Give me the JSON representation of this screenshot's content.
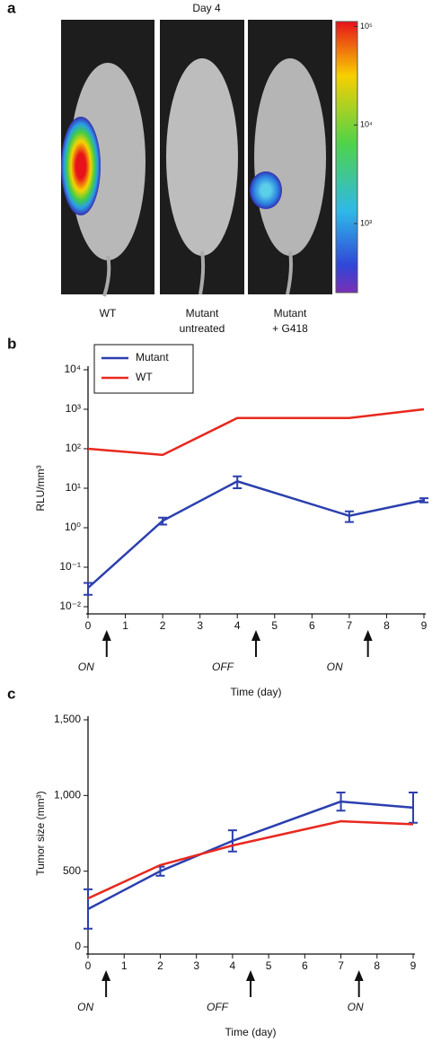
{
  "image_panel": {
    "label": "a",
    "title": "Day 4",
    "captions": [
      [
        "WT"
      ],
      [
        "Mutant",
        "untreated"
      ],
      [
        "Mutant",
        "+ G418"
      ]
    ],
    "colorbar_ticks": [
      {
        "value": 100000,
        "label": "10⁵"
      },
      {
        "value": 10000,
        "label": "10⁴"
      },
      {
        "value": 1000,
        "label": "10³"
      }
    ]
  },
  "chart_data": [
    {
      "type": "line",
      "label": "b",
      "xlabel": "Time (day)",
      "ylabel": "RLU/mm³",
      "yscale": "log",
      "x": [
        0,
        2,
        4,
        7,
        9
      ],
      "xlim": [
        0,
        9
      ],
      "xticks": [
        0,
        1,
        2,
        3,
        4,
        5,
        6,
        7,
        8,
        9
      ],
      "ylim": [
        0.01,
        10000
      ],
      "yticks": [
        {
          "value": 0.01,
          "label": "10⁻²"
        },
        {
          "value": 0.1,
          "label": "10⁻¹"
        },
        {
          "value": 1,
          "label": "10⁰"
        },
        {
          "value": 10,
          "label": "10¹"
        },
        {
          "value": 100,
          "label": "10²"
        },
        {
          "value": 1000,
          "label": "10³"
        },
        {
          "value": 10000,
          "label": "10⁴"
        }
      ],
      "series": [
        {
          "name": "Mutant",
          "color": "#2b3fae",
          "values": [
            0.03,
            1.5,
            15,
            2,
            5
          ],
          "errors": [
            0.01,
            0.3,
            5,
            0.6,
            0.6
          ]
        },
        {
          "name": "WT",
          "color": "#e8281e",
          "values": [
            100,
            70,
            600,
            600,
            1000
          ]
        }
      ],
      "legend": "top-left",
      "annotations": [
        {
          "x": 0.5,
          "text": "ON"
        },
        {
          "x": 4.5,
          "text": "OFF"
        },
        {
          "x": 7.5,
          "text": "ON"
        }
      ]
    },
    {
      "type": "line",
      "label": "c",
      "xlabel": "Time (day)",
      "ylabel": "Tumor size (mm³)",
      "yscale": "linear",
      "x": [
        0,
        2,
        4,
        7,
        9
      ],
      "xlim": [
        0,
        9
      ],
      "xticks": [
        0,
        1,
        2,
        3,
        4,
        5,
        6,
        7,
        8,
        9
      ],
      "ylim": [
        0,
        1500
      ],
      "yticks": [
        0,
        500,
        {
          "value": 1000,
          "label": "1,000"
        },
        {
          "value": 1500,
          "label": "1,500"
        }
      ],
      "series": [
        {
          "name": "Mutant",
          "color": "#2b3fae",
          "values": [
            250,
            500,
            700,
            960,
            920
          ],
          "errors": [
            130,
            30,
            70,
            60,
            100
          ]
        },
        {
          "name": "WT",
          "color": "#e8281e",
          "values": [
            320,
            540,
            670,
            830,
            810
          ]
        }
      ],
      "annotations": [
        {
          "x": 0.5,
          "text": "ON"
        },
        {
          "x": 4.5,
          "text": "OFF"
        },
        {
          "x": 7.5,
          "text": "ON"
        }
      ]
    }
  ]
}
